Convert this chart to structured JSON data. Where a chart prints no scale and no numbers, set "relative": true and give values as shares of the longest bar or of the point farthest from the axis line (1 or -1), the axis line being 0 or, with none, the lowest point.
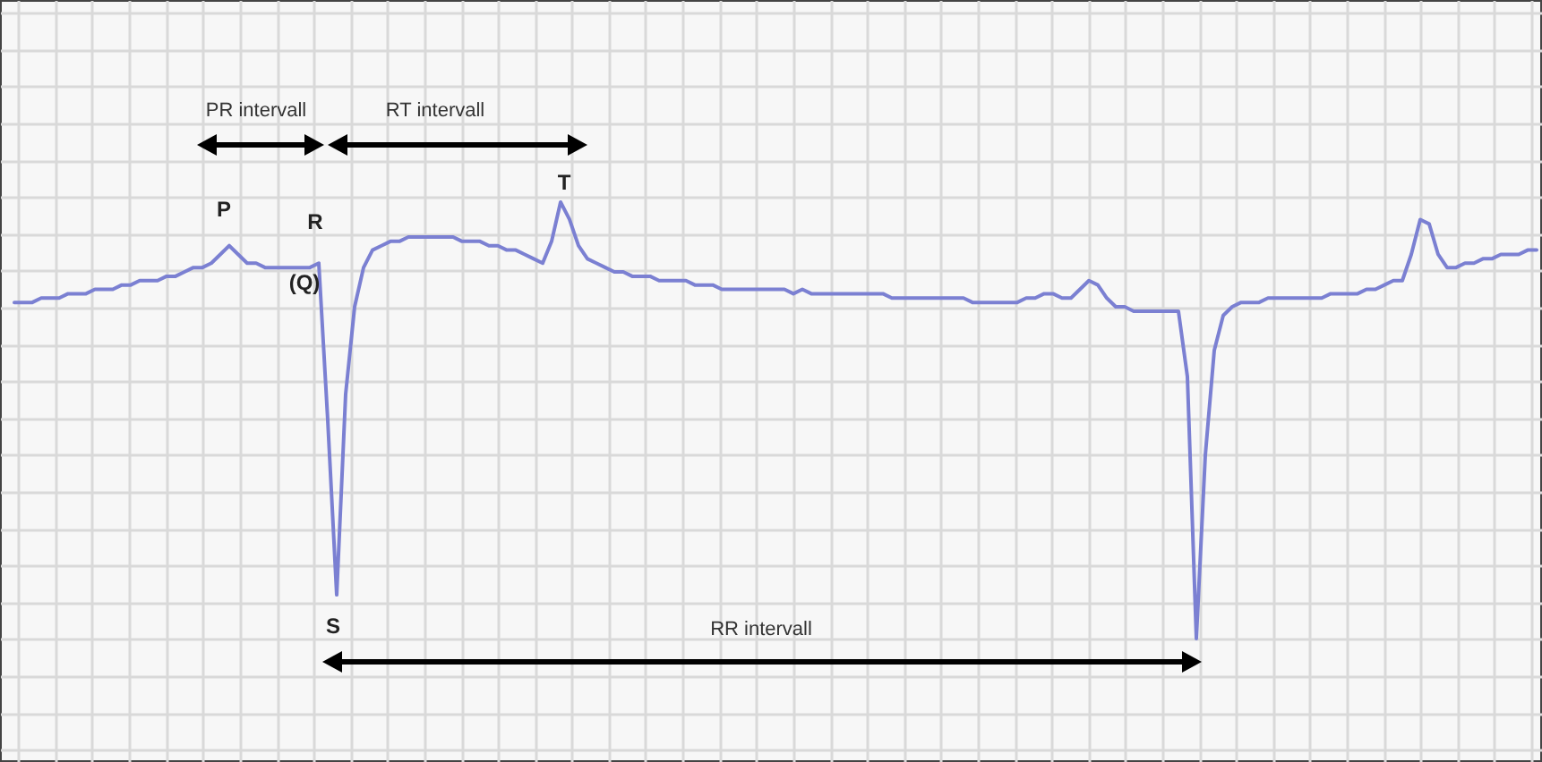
{
  "chart_data": {
    "type": "line",
    "relative": true,
    "grid": true,
    "categories": [
      null,
      null,
      null,
      null,
      null,
      null,
      null,
      null,
      null,
      null,
      null,
      null,
      null,
      null,
      null,
      null,
      null,
      null,
      null,
      null,
      null,
      null,
      null,
      null,
      null,
      null,
      null,
      null,
      null,
      null,
      null,
      null,
      null,
      null,
      null,
      null,
      null,
      null,
      null,
      null,
      null,
      null,
      null,
      null,
      null,
      null,
      null,
      null,
      null,
      null,
      null,
      null,
      null,
      null,
      null,
      null,
      null,
      null,
      null,
      null,
      null,
      null,
      null,
      null,
      null,
      null,
      null,
      null,
      null,
      null,
      null,
      null,
      null,
      null,
      null,
      null,
      null,
      null,
      null,
      null,
      null,
      null,
      null,
      null,
      null,
      null,
      null,
      null,
      null,
      null,
      null,
      null,
      null,
      null,
      null,
      null,
      null,
      null,
      null,
      null,
      null,
      null,
      null,
      null,
      null,
      null,
      null,
      null,
      null,
      null,
      null,
      null,
      null,
      null,
      null,
      null,
      null,
      null,
      null,
      null,
      null,
      null,
      null,
      null,
      null,
      null,
      null,
      null,
      null,
      null,
      null,
      null,
      null,
      null,
      null,
      null,
      null,
      null,
      null,
      null,
      null,
      null,
      null,
      null,
      null,
      null,
      null,
      null,
      null,
      null,
      null,
      null,
      null,
      null,
      null,
      null,
      null,
      null,
      null,
      null,
      null,
      null,
      null,
      null,
      null,
      null,
      null,
      null,
      null,
      null,
      null
    ],
    "series": [
      {
        "color": "#7b80d2",
        "values": [
          0.77,
          0.77,
          0.77,
          0.78,
          0.78,
          0.78,
          0.79,
          0.79,
          0.79,
          0.8,
          0.8,
          0.8,
          0.81,
          0.81,
          0.82,
          0.82,
          0.82,
          0.83,
          0.83,
          0.84,
          0.85,
          0.85,
          0.86,
          0.88,
          0.9,
          0.88,
          0.86,
          0.86,
          0.85,
          0.85,
          0.85,
          0.85,
          0.85,
          0.85,
          0.86,
          0.5,
          0.1,
          0.56,
          0.76,
          0.85,
          0.89,
          0.9,
          0.91,
          0.91,
          0.92,
          0.92,
          0.92,
          0.92,
          0.92,
          0.92,
          0.91,
          0.91,
          0.91,
          0.9,
          0.9,
          0.89,
          0.89,
          0.88,
          0.87,
          0.86,
          0.91,
          1,
          0.96,
          0.9,
          0.87,
          0.86,
          0.85,
          0.84,
          0.84,
          0.83,
          0.83,
          0.83,
          0.82,
          0.82,
          0.82,
          0.82,
          0.81,
          0.81,
          0.81,
          0.8,
          0.8,
          0.8,
          0.8,
          0.8,
          0.8,
          0.8,
          0.8,
          0.79,
          0.8,
          0.79,
          0.79,
          0.79,
          0.79,
          0.79,
          0.79,
          0.79,
          0.79,
          0.79,
          0.78,
          0.78,
          0.78,
          0.78,
          0.78,
          0.78,
          0.78,
          0.78,
          0.78,
          0.77,
          0.77,
          0.77,
          0.77,
          0.77,
          0.77,
          0.78,
          0.78,
          0.79,
          0.79,
          0.78,
          0.78,
          0.8,
          0.82,
          0.81,
          0.78,
          0.76,
          0.76,
          0.75,
          0.75,
          0.75,
          0.75,
          0.75,
          0.75,
          0.6,
          0,
          0.42,
          0.66,
          0.74,
          0.76,
          0.77,
          0.77,
          0.77,
          0.78,
          0.78,
          0.78,
          0.78,
          0.78,
          0.78,
          0.78,
          0.79,
          0.79,
          0.79,
          0.79,
          0.8,
          0.8,
          0.81,
          0.82,
          0.82,
          0.88,
          0.96,
          0.95,
          0.88,
          0.85,
          0.85,
          0.86,
          0.86,
          0.87,
          0.87,
          0.88,
          0.88,
          0.88,
          0.89,
          0.89
        ]
      }
    ],
    "annotations": [
      "PR intervall",
      "RT intervall",
      "T",
      "P",
      "R",
      "(Q)",
      "S",
      "RR intervall"
    ]
  }
}
